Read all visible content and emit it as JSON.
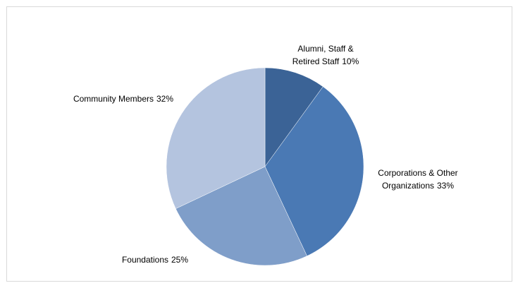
{
  "chart_data": {
    "type": "pie",
    "categories": [
      "Alumni, Staff & Retired Staff",
      "Corporations & Other Organizations",
      "Foundations",
      "Community Members"
    ],
    "values": [
      10,
      33,
      25,
      32
    ],
    "value_labels": [
      "10%",
      "33%",
      "25%",
      "32%"
    ],
    "colors": [
      "#3b6396",
      "#4a79b4",
      "#7f9ec9",
      "#b4c4df"
    ]
  }
}
